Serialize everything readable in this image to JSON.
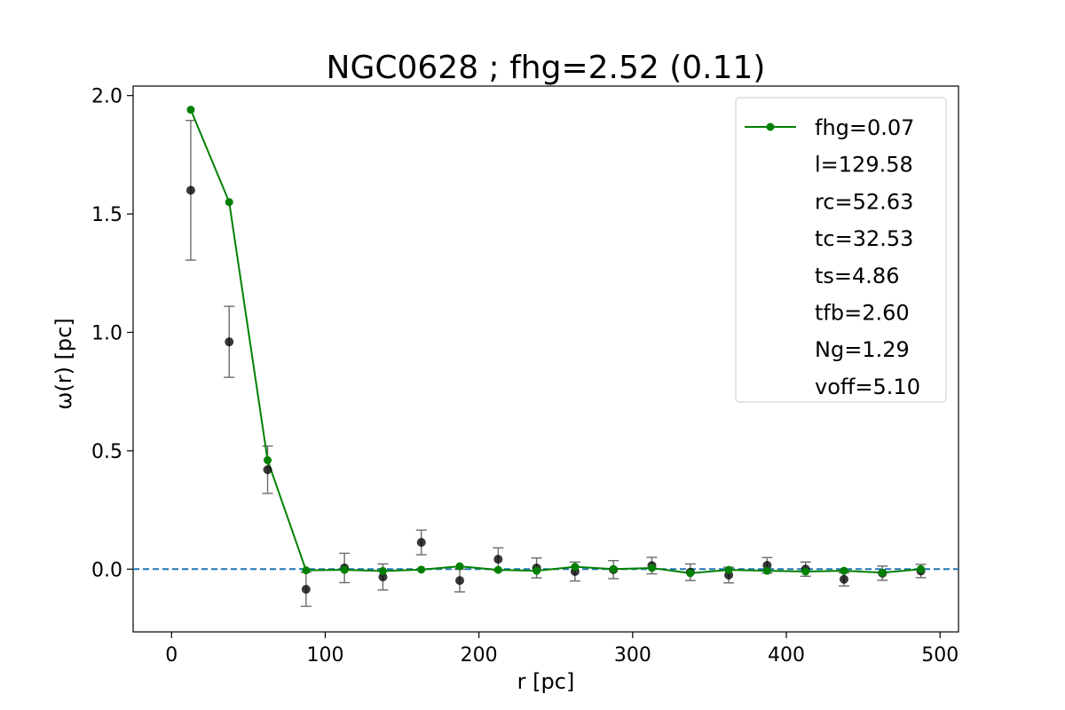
{
  "chart_data": {
    "type": "scatter",
    "title": "NGC0628 ; fhg=2.52 (0.11)",
    "xlabel": "r [pc]",
    "ylabel": "ω(r) [pc]",
    "xlim": [
      -25,
      512
    ],
    "ylim": [
      -0.265,
      2.04
    ],
    "xticks": [
      0,
      100,
      200,
      300,
      400,
      500
    ],
    "xtick_labels": [
      "0",
      "100",
      "200",
      "300",
      "400",
      "500"
    ],
    "yticks": [
      0.0,
      0.5,
      1.0,
      1.5,
      2.0
    ],
    "ytick_labels": [
      "0.0",
      "0.5",
      "1.0",
      "1.5",
      "2.0"
    ],
    "grid": false,
    "legend_position": "top-right",
    "reference_line": {
      "y": 0.0,
      "style": "dashed",
      "color": "#1f77b4"
    },
    "series": [
      {
        "kind": "observed",
        "color": "#000000",
        "x": [
          12.5,
          37.5,
          62.5,
          87.5,
          112.5,
          137.5,
          162.5,
          187.5,
          212.5,
          237.5,
          262.5,
          287.5,
          312.5,
          337.5,
          362.5,
          387.5,
          412.5,
          437.5,
          462.5,
          487.5
        ],
        "y": [
          1.6,
          0.96,
          0.42,
          -0.085,
          0.005,
          -0.033,
          0.113,
          -0.048,
          0.042,
          0.005,
          -0.01,
          -0.002,
          0.015,
          -0.013,
          -0.025,
          0.016,
          0.0,
          -0.043,
          -0.017,
          -0.008
        ],
        "yerr": [
          0.295,
          0.15,
          0.1,
          0.072,
          0.062,
          0.055,
          0.052,
          0.048,
          0.048,
          0.042,
          0.04,
          0.038,
          0.035,
          0.035,
          0.033,
          0.033,
          0.03,
          0.028,
          0.03,
          0.028
        ]
      },
      {
        "name": "fhg=0.07",
        "kind": "model",
        "color": "#008000",
        "x": [
          12.5,
          37.5,
          62.5,
          87.5,
          112.5,
          137.5,
          162.5,
          187.5,
          212.5,
          237.5,
          262.5,
          287.5,
          312.5,
          337.5,
          362.5,
          387.5,
          412.5,
          437.5,
          462.5,
          487.5
        ],
        "y": [
          1.94,
          1.55,
          0.46,
          -0.005,
          -0.003,
          -0.008,
          -0.002,
          0.012,
          -0.003,
          -0.007,
          0.01,
          0.0,
          0.005,
          -0.017,
          -0.003,
          -0.007,
          -0.01,
          -0.007,
          -0.015,
          0.0
        ]
      }
    ],
    "legend_extra": [
      "l=129.58",
      "rc=52.63",
      "tc=32.53",
      "ts=4.86",
      "tfb=2.60",
      "Ng=1.29",
      "voff=5.10"
    ]
  }
}
